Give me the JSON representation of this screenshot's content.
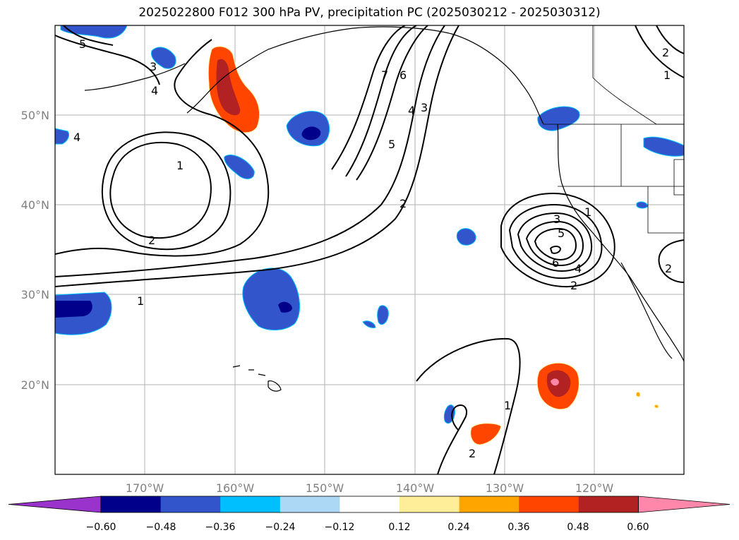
{
  "title": "2025022800 F012 300 hPa PV, precipitation PC (2025030212 - 2025030312)",
  "lat_ticks": [
    "50°N",
    "40°N",
    "30°N",
    "20°N"
  ],
  "lon_ticks": [
    "170°W",
    "160°W",
    "150°W",
    "140°W",
    "130°W",
    "120°W"
  ],
  "contour_labels": [
    "1",
    "2",
    "3",
    "4",
    "5",
    "6",
    "7"
  ],
  "colorbar": {
    "ticks": [
      "−0.60",
      "−0.48",
      "−0.36",
      "−0.24",
      "−0.12",
      "0.12",
      "0.24",
      "0.36",
      "0.48",
      "0.60"
    ],
    "colors": [
      "#9933cc",
      "#00008b",
      "#3355cc",
      "#00bfff",
      "#add8f5",
      "#ffffff",
      "#ffee99",
      "#ffa500",
      "#ff4500",
      "#b22222",
      "#ff88aa"
    ]
  },
  "shading_colors": {
    "neg_strong": "#00008b",
    "neg_mid": "#3355cc",
    "neg_weak": "#00bfff",
    "pos_weak": "#ffa500",
    "pos_mid": "#ff4500",
    "pos_strong": "#b22222",
    "pos_max": "#ff88aa"
  }
}
